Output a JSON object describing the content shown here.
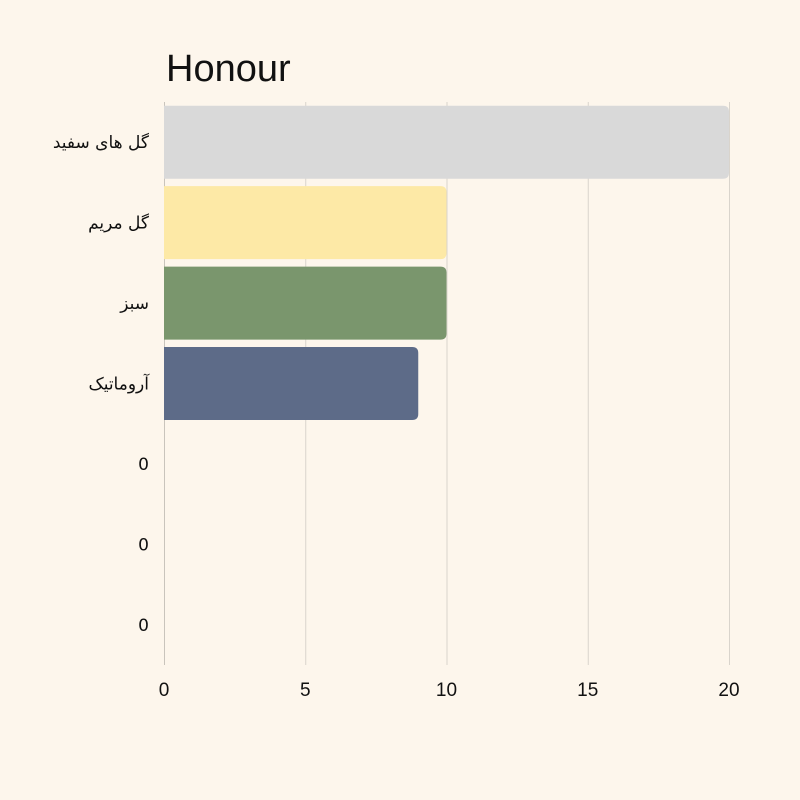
{
  "chart_data": {
    "type": "bar",
    "orientation": "horizontal",
    "title": "Honour",
    "xlabel": "",
    "ylabel": "",
    "categories": [
      "گل های سفید",
      "گل مریم",
      "سبز",
      "آروماتیک",
      "0",
      "0",
      "0"
    ],
    "values": [
      20,
      10,
      10,
      9,
      0,
      0,
      0
    ],
    "colors": [
      "#d9d9d9",
      "#fde9a6",
      "#7a966d",
      "#5d6b88",
      "#d9d9d9",
      "#d9d9d9",
      "#d9d9d9"
    ],
    "xlim": [
      0,
      20
    ],
    "xticks": [
      0,
      5,
      10,
      15,
      20
    ],
    "grid": true,
    "legend": "none",
    "background": "#fdf6ec"
  }
}
